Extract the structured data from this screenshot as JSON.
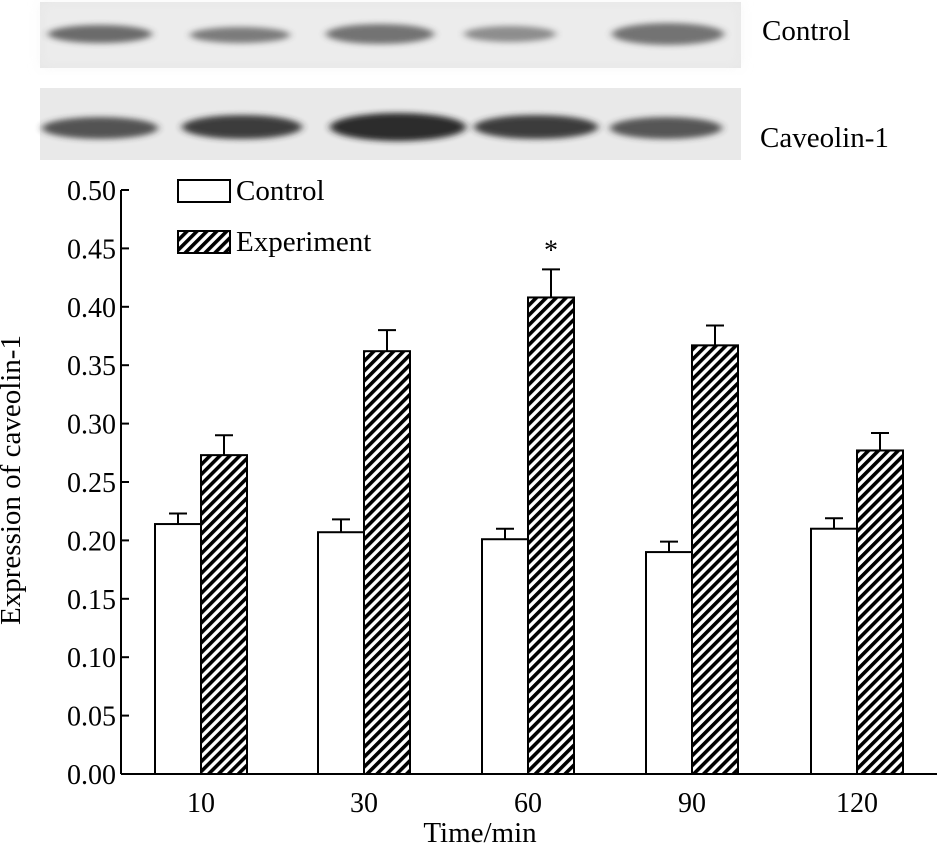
{
  "blot": {
    "label_top": "Control",
    "label_bottom": "Caveolin-1"
  },
  "chart_data": {
    "type": "bar",
    "title": "",
    "xlabel": "Time/min",
    "ylabel": "Expression of caveolin-1",
    "categories": [
      "10",
      "30",
      "60",
      "90",
      "120"
    ],
    "ylim": [
      0,
      0.5
    ],
    "yticks": [
      "0.00",
      "0.05",
      "0.10",
      "0.15",
      "0.20",
      "0.25",
      "0.30",
      "0.35",
      "0.40",
      "0.45",
      "0.50"
    ],
    "grid": false,
    "legend_position": "top-left",
    "series": [
      {
        "name": "Control",
        "fill": "white",
        "values": [
          0.214,
          0.207,
          0.201,
          0.19,
          0.21
        ],
        "errors": [
          0.009,
          0.011,
          0.009,
          0.009,
          0.009
        ]
      },
      {
        "name": "Experiment",
        "fill": "hatched",
        "values": [
          0.273,
          0.362,
          0.408,
          0.367,
          0.277
        ],
        "errors": [
          0.017,
          0.018,
          0.024,
          0.017,
          0.015
        ]
      }
    ],
    "annotations": [
      {
        "category": "60",
        "series": "Experiment",
        "text": "*"
      }
    ]
  },
  "colors": {
    "ink": "#000000",
    "blot_bg": "#ececec",
    "band": "#3a3a3a"
  }
}
